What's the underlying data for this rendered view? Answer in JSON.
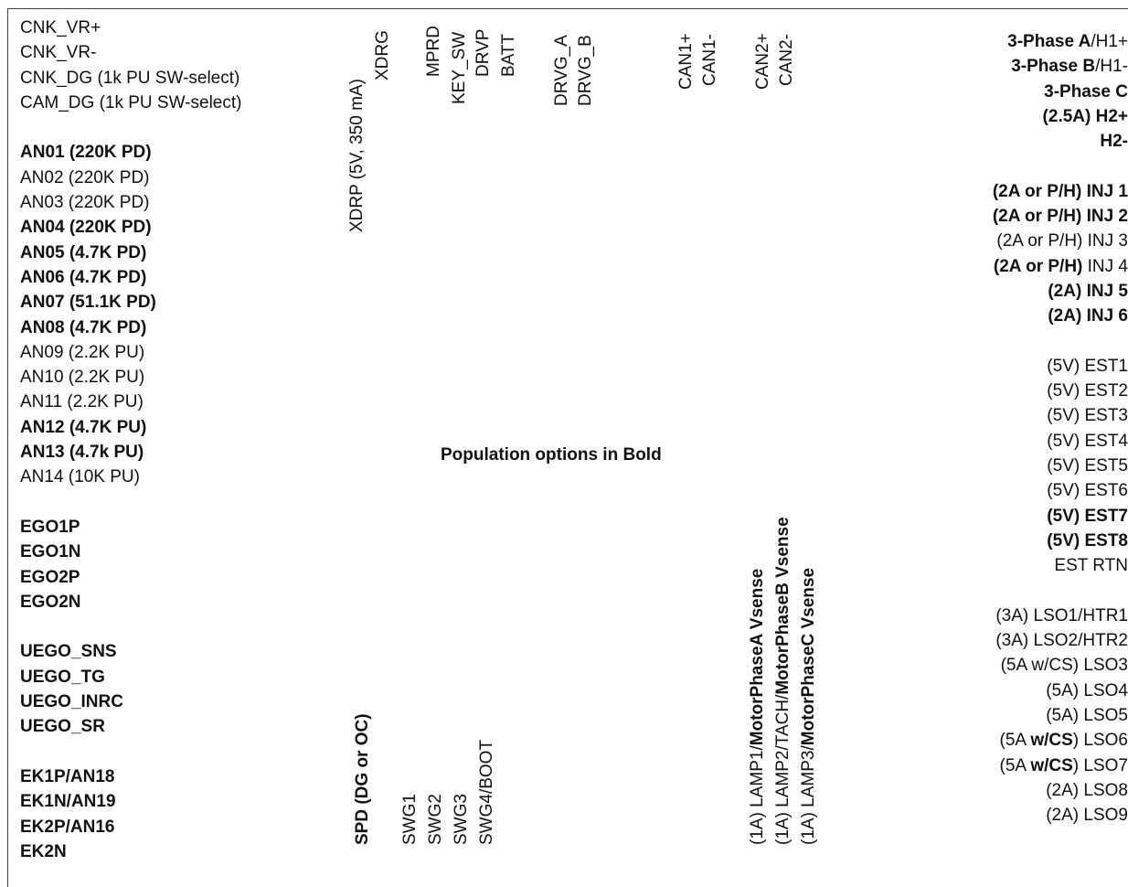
{
  "left_column": [
    [
      {
        "t": "CNK_VR+",
        "b": false
      }
    ],
    [
      {
        "t": "CNK_VR-",
        "b": false
      }
    ],
    [
      {
        "t": "CNK_DG (1k PU SW-select)",
        "b": false
      }
    ],
    [
      {
        "t": "CAM_DG (1k PU SW-select)",
        "b": false
      }
    ],
    null,
    [
      {
        "t": "AN01 (220K PD)",
        "b": true
      }
    ],
    [
      {
        "t": "AN02 (220K PD)",
        "b": false
      }
    ],
    [
      {
        "t": "AN03 (220K PD)",
        "b": false
      }
    ],
    [
      {
        "t": "AN04 (220K PD)",
        "b": true
      }
    ],
    [
      {
        "t": "AN05 (4.7K PD)",
        "b": true
      }
    ],
    [
      {
        "t": "AN06 (4.7K PD)",
        "b": true
      }
    ],
    [
      {
        "t": "AN07 (51.1K PD)",
        "b": true
      }
    ],
    [
      {
        "t": "AN08 (4.7K PD)",
        "b": true
      }
    ],
    [
      {
        "t": "AN09 (2.2K PU)",
        "b": false
      }
    ],
    [
      {
        "t": "AN10 (2.2K PU)",
        "b": false
      }
    ],
    [
      {
        "t": "AN11 (2.2K PU)",
        "b": false
      }
    ],
    [
      {
        "t": "AN12 (4.7K PU)",
        "b": true
      }
    ],
    [
      {
        "t": "AN13 (4.7k PU)",
        "b": true
      }
    ],
    [
      {
        "t": "AN14 (10K PU)",
        "b": false
      }
    ],
    null,
    [
      {
        "t": "EGO1P",
        "b": true
      }
    ],
    [
      {
        "t": "EGO1N",
        "b": true
      }
    ],
    [
      {
        "t": "EGO2P",
        "b": true
      }
    ],
    [
      {
        "t": "EGO2N",
        "b": true
      }
    ],
    null,
    [
      {
        "t": "UEGO_SNS",
        "b": true
      }
    ],
    [
      {
        "t": "UEGO_TG",
        "b": true
      }
    ],
    [
      {
        "t": "UEGO_INRC",
        "b": true
      }
    ],
    [
      {
        "t": "UEGO_SR",
        "b": true
      }
    ],
    null,
    [
      {
        "t": "EK1P/AN18",
        "b": true
      }
    ],
    [
      {
        "t": "EK1N/AN19",
        "b": true
      }
    ],
    [
      {
        "t": "EK2P/AN16",
        "b": true
      }
    ],
    [
      {
        "t": "EK2N",
        "b": true
      }
    ]
  ],
  "right_column": [
    [
      {
        "t": "3-Phase ",
        "b": true
      },
      {
        "t": "A",
        "b": true
      },
      {
        "t": "/H1+",
        "b": false
      }
    ],
    [
      {
        "t": "3-Phase ",
        "b": true
      },
      {
        "t": "B",
        "b": true
      },
      {
        "t": "/H1-",
        "b": false
      }
    ],
    [
      {
        "t": "3-Phase C",
        "b": true
      }
    ],
    [
      {
        "t": "(2.5A) H2+",
        "b": true
      }
    ],
    [
      {
        "t": "H2-",
        "b": true
      }
    ],
    null,
    [
      {
        "t": "(2A or P/H) INJ 1",
        "b": true
      }
    ],
    [
      {
        "t": "(2A or P/H) INJ 2",
        "b": true
      }
    ],
    [
      {
        "t": "(2A or P/H) INJ 3",
        "b": false
      }
    ],
    [
      {
        "t": "(2A or P/H)",
        "b": true
      },
      {
        "t": " INJ 4",
        "b": false
      }
    ],
    [
      {
        "t": "(2A) INJ 5",
        "b": true
      }
    ],
    [
      {
        "t": "(2A) INJ 6",
        "b": true
      }
    ],
    null,
    [
      {
        "t": "(5V)  EST1",
        "b": false
      }
    ],
    [
      {
        "t": "(5V)  EST2",
        "b": false
      }
    ],
    [
      {
        "t": "(5V)  EST3",
        "b": false
      }
    ],
    [
      {
        "t": "(5V)  EST4",
        "b": false
      }
    ],
    [
      {
        "t": "(5V)  EST5",
        "b": false
      }
    ],
    [
      {
        "t": "(5V)  EST6",
        "b": false
      }
    ],
    [
      {
        "t": "(5V)  EST7",
        "b": true
      }
    ],
    [
      {
        "t": "(5V) EST8",
        "b": true
      }
    ],
    [
      {
        "t": "EST RTN",
        "b": false
      }
    ],
    null,
    [
      {
        "t": "(3A) LSO1/HTR1",
        "b": false
      }
    ],
    [
      {
        "t": "(3A) LSO2/HTR2",
        "b": false
      }
    ],
    [
      {
        "t": "(5A w/CS) LSO3",
        "b": false
      }
    ],
    [
      {
        "t": "(5A) LSO4",
        "b": false
      }
    ],
    [
      {
        "t": "(5A) LSO5",
        "b": false
      }
    ],
    [
      {
        "t": "(5A ",
        "b": false
      },
      {
        "t": "w/CS",
        "b": true
      },
      {
        "t": ") LSO6",
        "b": false
      }
    ],
    [
      {
        "t": "(5A ",
        "b": false
      },
      {
        "t": "w/CS",
        "b": true
      },
      {
        "t": ") LSO7",
        "b": false
      }
    ],
    [
      {
        "t": "(2A) LSO8",
        "b": false
      }
    ],
    [
      {
        "t": "(2A) LSO9",
        "b": false
      }
    ]
  ],
  "top_vertical_labels": [
    {
      "id": "xdrp",
      "text": "XDRP (5V, 350 mA)"
    },
    {
      "id": "xdrg",
      "text": "XDRG"
    },
    {
      "id": "mprd",
      "text": "MPRD"
    },
    {
      "id": "key-sw",
      "text": "KEY_SW"
    },
    {
      "id": "drvp",
      "text": "DRVP"
    },
    {
      "id": "batt",
      "text": "BATT"
    },
    {
      "id": "drvg-a",
      "text": "DRVG_A"
    },
    {
      "id": "drvg-b",
      "text": "DRVG_B"
    },
    {
      "id": "can1p",
      "text": "CAN1+"
    },
    {
      "id": "can1n",
      "text": "CAN1-"
    },
    {
      "id": "can2p",
      "text": "CAN2+"
    },
    {
      "id": "can2n",
      "text": "CAN2-"
    }
  ],
  "bottom_vertical_labels": {
    "spd": "SPD (DG or OC)",
    "swg1": "SWG1",
    "swg2": "SWG2",
    "swg3": "SWG3",
    "swg4": "SWG4/BOOT",
    "lamp1_prefix": "(1A) LAMP1/",
    "lamp1_bold": "MotorPhaseA  Vsense",
    "lamp2_prefix": "(1A) LAMP2/TACH/",
    "lamp2_bold": "MotorPhaseB Vsense",
    "lamp3_prefix": "(1A) LAMP3/",
    "lamp3_bold": "MotorPhaseC  Vsense"
  },
  "center_note": "Population options in Bold"
}
